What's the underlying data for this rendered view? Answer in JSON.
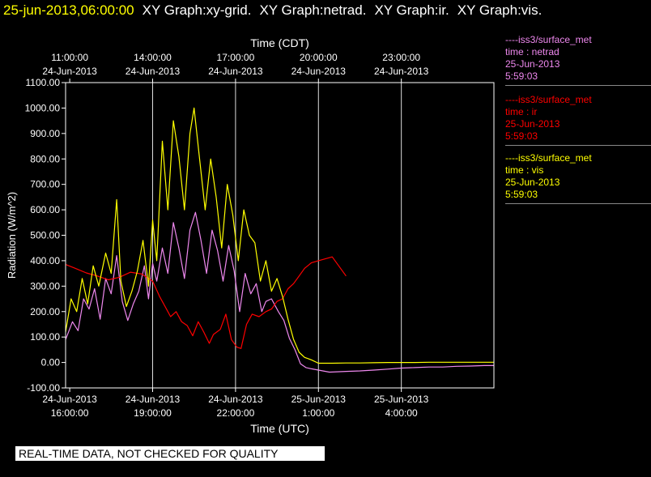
{
  "header": {
    "timestamp": "25-jun-2013,06:00:00",
    "graphs": [
      "XY Graph:xy-grid.",
      "XY Graph:netrad.",
      "XY Graph:ir.",
      "XY Graph:vis."
    ]
  },
  "legend": [
    {
      "station": "----iss3/surface_met",
      "variable": "time : netrad",
      "date": "25-Jun-2013",
      "time": "5:59:03",
      "color": "#ee88ee"
    },
    {
      "station": "----iss3/surface_met",
      "variable": "time : ir",
      "date": "25-Jun-2013",
      "time": "5:59:03",
      "color": "#ff0000"
    },
    {
      "station": "----iss3/surface_met",
      "variable": "time : vis",
      "date": "25-Jun-2013",
      "time": "5:59:03",
      "color": "#ffff00"
    }
  ],
  "banner": "REAL-TIME DATA, NOT CHECKED FOR QUALITY",
  "chart_data": {
    "type": "line",
    "title": "",
    "xlabel": "Time (UTC)",
    "x2label": "Time (CDT)",
    "ylabel": "Radiation (W/m^2)",
    "ylim": [
      -100,
      1100
    ],
    "xlim": [
      15.85,
      31.35
    ],
    "yticks": [
      "-100.00",
      "0.00",
      "100.00",
      "200.00",
      "300.00",
      "400.00",
      "500.00",
      "600.00",
      "700.00",
      "800.00",
      "900.00",
      "1000.00",
      "1100.00"
    ],
    "ytick_values": [
      -100,
      0,
      100,
      200,
      300,
      400,
      500,
      600,
      700,
      800,
      900,
      1000,
      1100
    ],
    "xticks": [
      {
        "x": 16,
        "date": "24-Jun-2013",
        "time": "16:00:00"
      },
      {
        "x": 19,
        "date": "24-Jun-2013",
        "time": "19:00:00"
      },
      {
        "x": 22,
        "date": "24-Jun-2013",
        "time": "22:00:00"
      },
      {
        "x": 25,
        "date": "25-Jun-2013",
        "time": "1:00:00"
      },
      {
        "x": 28,
        "date": "25-Jun-2013",
        "time": "4:00:00"
      }
    ],
    "x2ticks": [
      {
        "x": 16,
        "time": "11:00:00",
        "date": "24-Jun-2013"
      },
      {
        "x": 19,
        "time": "14:00:00",
        "date": "24-Jun-2013"
      },
      {
        "x": 22,
        "time": "17:00:00",
        "date": "24-Jun-2013"
      },
      {
        "x": 25,
        "time": "20:00:00",
        "date": "24-Jun-2013"
      },
      {
        "x": 28,
        "time": "23:00:00",
        "date": "24-Jun-2013"
      }
    ],
    "grid": true,
    "series": [
      {
        "name": "netrad",
        "color": "#ee88ee",
        "points": [
          [
            15.85,
            90
          ],
          [
            16.1,
            160
          ],
          [
            16.3,
            125
          ],
          [
            16.5,
            250
          ],
          [
            16.7,
            210
          ],
          [
            16.9,
            290
          ],
          [
            17.1,
            170
          ],
          [
            17.3,
            330
          ],
          [
            17.5,
            270
          ],
          [
            17.7,
            420
          ],
          [
            17.9,
            240
          ],
          [
            18.1,
            165
          ],
          [
            18.3,
            230
          ],
          [
            18.5,
            280
          ],
          [
            18.7,
            380
          ],
          [
            18.85,
            250
          ],
          [
            19.0,
            390
          ],
          [
            19.15,
            320
          ],
          [
            19.35,
            450
          ],
          [
            19.55,
            350
          ],
          [
            19.75,
            550
          ],
          [
            19.95,
            450
          ],
          [
            20.15,
            330
          ],
          [
            20.35,
            520
          ],
          [
            20.55,
            590
          ],
          [
            20.75,
            480
          ],
          [
            20.95,
            350
          ],
          [
            21.15,
            520
          ],
          [
            21.35,
            440
          ],
          [
            21.55,
            320
          ],
          [
            21.75,
            460
          ],
          [
            21.95,
            360
          ],
          [
            22.15,
            200
          ],
          [
            22.35,
            350
          ],
          [
            22.55,
            270
          ],
          [
            22.75,
            310
          ],
          [
            22.95,
            200
          ],
          [
            23.1,
            240
          ],
          [
            23.3,
            250
          ],
          [
            23.55,
            200
          ],
          [
            23.75,
            165
          ],
          [
            23.95,
            95
          ],
          [
            24.15,
            50
          ],
          [
            24.35,
            -5
          ],
          [
            24.55,
            -20
          ],
          [
            24.75,
            -25
          ],
          [
            25.0,
            -30
          ],
          [
            25.4,
            -38
          ],
          [
            26.0,
            -35
          ],
          [
            26.5,
            -33
          ],
          [
            27.0,
            -30
          ],
          [
            27.5,
            -26
          ],
          [
            28.0,
            -22
          ],
          [
            28.5,
            -20
          ],
          [
            29.0,
            -18
          ],
          [
            29.5,
            -18
          ],
          [
            30.0,
            -15
          ],
          [
            30.5,
            -14
          ],
          [
            31.0,
            -12
          ],
          [
            31.35,
            -12
          ]
        ]
      },
      {
        "name": "ir",
        "color": "#ff0000",
        "points": [
          [
            15.85,
            385
          ],
          [
            16.2,
            370
          ],
          [
            16.6,
            352
          ],
          [
            17.0,
            340
          ],
          [
            17.4,
            325
          ],
          [
            17.8,
            335
          ],
          [
            18.2,
            355
          ],
          [
            18.6,
            348
          ],
          [
            19.0,
            320
          ],
          [
            19.25,
            260
          ],
          [
            19.45,
            220
          ],
          [
            19.65,
            180
          ],
          [
            19.85,
            200
          ],
          [
            20.05,
            160
          ],
          [
            20.25,
            145
          ],
          [
            20.45,
            105
          ],
          [
            20.65,
            160
          ],
          [
            20.85,
            120
          ],
          [
            21.05,
            75
          ],
          [
            21.2,
            110
          ],
          [
            21.45,
            130
          ],
          [
            21.65,
            190
          ],
          [
            21.85,
            90
          ],
          [
            22.05,
            60
          ],
          [
            22.2,
            55
          ],
          [
            22.4,
            150
          ],
          [
            22.6,
            190
          ],
          [
            22.85,
            180
          ],
          [
            23.1,
            200
          ],
          [
            23.3,
            210
          ],
          [
            23.5,
            240
          ],
          [
            23.7,
            250
          ],
          [
            23.9,
            290
          ],
          [
            24.1,
            310
          ],
          [
            24.3,
            340
          ],
          [
            24.5,
            370
          ],
          [
            24.75,
            392
          ],
          [
            25.0,
            400
          ],
          [
            25.5,
            415
          ],
          [
            26.0,
            340
          ],
          [
            26.0,
            340
          ],
          [
            26.0,
            340
          ]
        ]
      },
      {
        "name": "vis",
        "color": "#ffff00",
        "points": [
          [
            15.85,
            120
          ],
          [
            16.05,
            250
          ],
          [
            16.25,
            200
          ],
          [
            16.45,
            330
          ],
          [
            16.65,
            230
          ],
          [
            16.85,
            380
          ],
          [
            17.05,
            300
          ],
          [
            17.3,
            430
          ],
          [
            17.5,
            350
          ],
          [
            17.7,
            640
          ],
          [
            17.85,
            320
          ],
          [
            18.05,
            220
          ],
          [
            18.25,
            280
          ],
          [
            18.45,
            360
          ],
          [
            18.65,
            480
          ],
          [
            18.85,
            300
          ],
          [
            19.0,
            560
          ],
          [
            19.15,
            400
          ],
          [
            19.35,
            870
          ],
          [
            19.55,
            600
          ],
          [
            19.75,
            950
          ],
          [
            19.95,
            810
          ],
          [
            20.15,
            600
          ],
          [
            20.35,
            900
          ],
          [
            20.5,
            1000
          ],
          [
            20.7,
            800
          ],
          [
            20.9,
            600
          ],
          [
            21.1,
            800
          ],
          [
            21.3,
            650
          ],
          [
            21.5,
            450
          ],
          [
            21.7,
            700
          ],
          [
            21.9,
            580
          ],
          [
            22.1,
            400
          ],
          [
            22.3,
            600
          ],
          [
            22.5,
            500
          ],
          [
            22.7,
            470
          ],
          [
            22.9,
            320
          ],
          [
            23.1,
            400
          ],
          [
            23.3,
            280
          ],
          [
            23.5,
            330
          ],
          [
            23.7,
            260
          ],
          [
            23.9,
            170
          ],
          [
            24.1,
            90
          ],
          [
            24.3,
            40
          ],
          [
            24.5,
            20
          ],
          [
            24.75,
            10
          ],
          [
            25.0,
            -3
          ],
          [
            25.5,
            -3
          ],
          [
            26.0,
            -2
          ],
          [
            26.5,
            -2
          ],
          [
            27.0,
            -1
          ],
          [
            27.5,
            0
          ],
          [
            28.0,
            0
          ],
          [
            28.5,
            0
          ],
          [
            29.0,
            1
          ],
          [
            29.5,
            1
          ],
          [
            30.0,
            1
          ],
          [
            30.5,
            1
          ],
          [
            31.0,
            1
          ],
          [
            31.35,
            1
          ]
        ]
      }
    ]
  }
}
